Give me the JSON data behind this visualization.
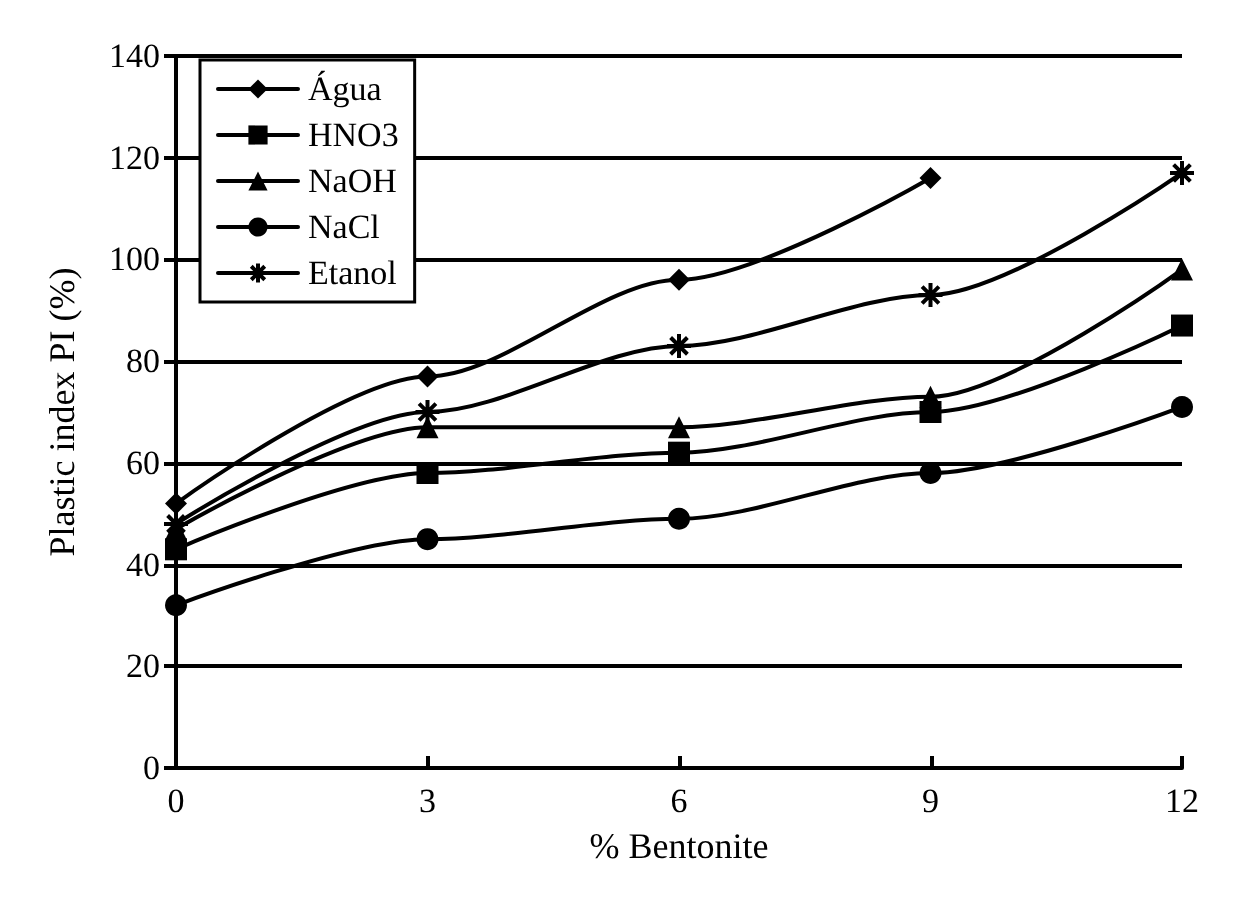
{
  "chart_data": {
    "type": "line",
    "xlabel": "% Bentonite",
    "ylabel": "Plastic index PI (%)",
    "x": [
      0,
      3,
      6,
      9,
      12
    ],
    "xlim": [
      0,
      12
    ],
    "xticks": [
      0,
      3,
      6,
      9,
      12
    ],
    "ylim": [
      0,
      140
    ],
    "yticks": [
      0,
      20,
      40,
      60,
      80,
      100,
      120,
      140
    ],
    "grid": "y",
    "legend": "top left",
    "line_style": "solid",
    "series": [
      {
        "name": "Água",
        "color": "#000000",
        "marker": "diamond",
        "values": [
          52,
          77,
          96,
          116,
          null
        ]
      },
      {
        "name": "HNO3",
        "color": "#000000",
        "marker": "square",
        "values": [
          43,
          58,
          62,
          70,
          87
        ]
      },
      {
        "name": "NaOH",
        "color": "#000000",
        "marker": "triangle",
        "values": [
          47,
          67,
          67,
          73,
          98
        ]
      },
      {
        "name": "NaCl",
        "color": "#000000",
        "marker": "circle",
        "values": [
          32,
          45,
          49,
          58,
          71
        ]
      },
      {
        "name": "Etanol",
        "color": "#000000",
        "marker": "cross",
        "values": [
          48,
          70,
          83,
          93,
          117
        ]
      }
    ]
  }
}
